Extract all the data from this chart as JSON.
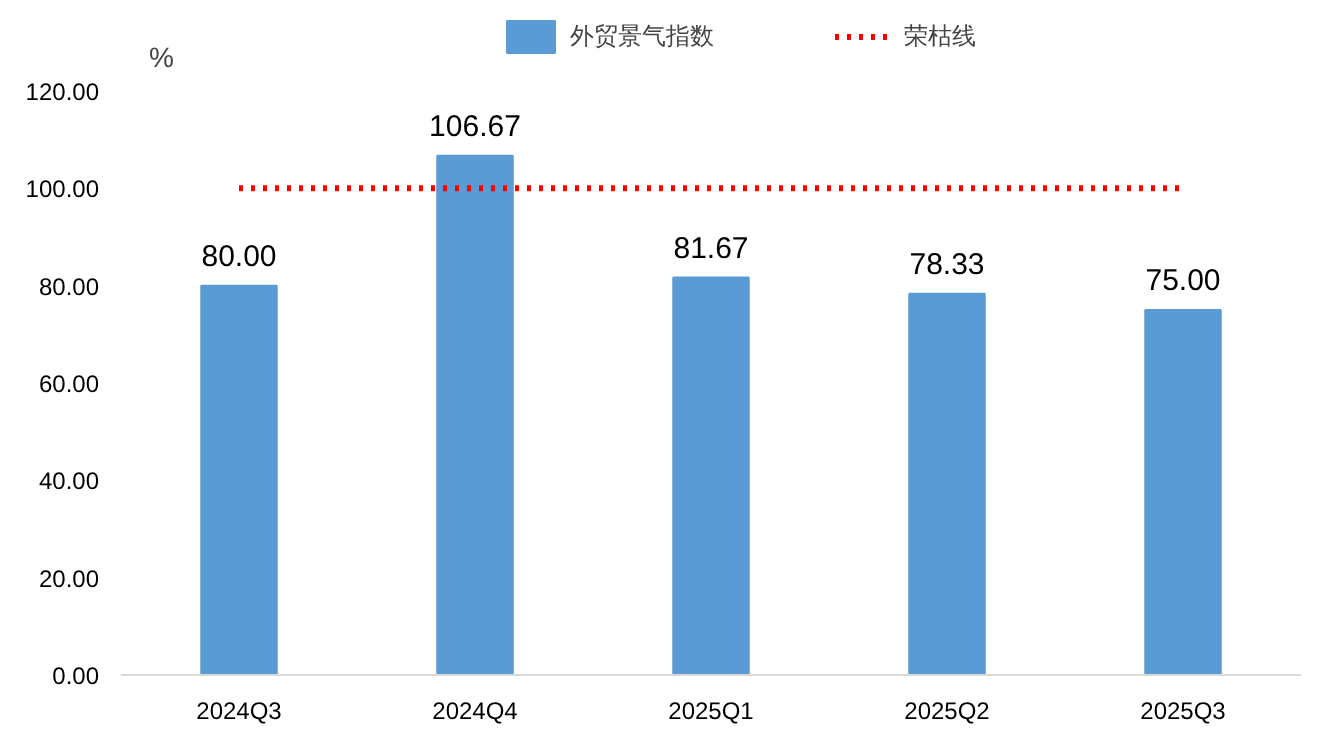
{
  "chart_data": {
    "type": "bar",
    "ylabel": "%",
    "categories": [
      "2024Q3",
      "2024Q4",
      "2025Q1",
      "2025Q2",
      "2025Q3"
    ],
    "series": [
      {
        "name": "外贸景气指数",
        "color": "#5b9bd5",
        "values": [
          80.0,
          106.67,
          81.67,
          78.33,
          75.0
        ],
        "value_labels": [
          "80.00",
          "106.67",
          "81.67",
          "78.33",
          "75.00"
        ]
      },
      {
        "name": "荣枯线",
        "type": "line",
        "color": "#ff0000",
        "line_style": "dotted",
        "values": [
          100,
          100,
          100,
          100,
          100
        ]
      }
    ],
    "ylim": [
      0,
      120
    ],
    "yticks": [
      {
        "value": 0,
        "label": "0.00"
      },
      {
        "value": 20,
        "label": "20.00"
      },
      {
        "value": 40,
        "label": "40.00"
      },
      {
        "value": 60,
        "label": "60.00"
      },
      {
        "value": 80,
        "label": "80.00"
      },
      {
        "value": 100,
        "label": "100.00"
      },
      {
        "value": 120,
        "label": "120.00"
      }
    ],
    "grid": false,
    "legend": "top"
  }
}
